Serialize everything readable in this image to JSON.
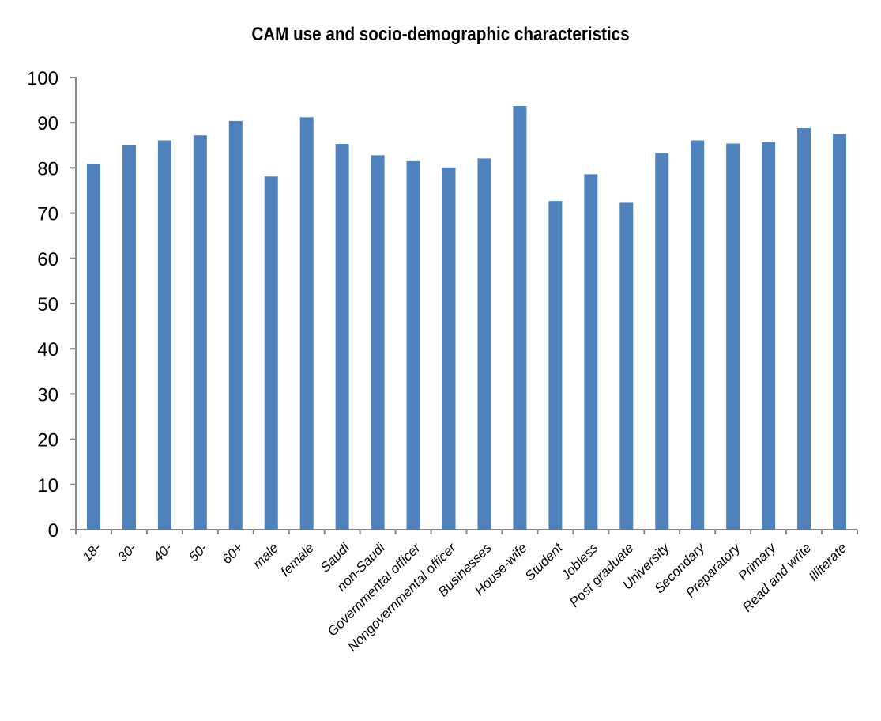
{
  "chart_data": {
    "type": "bar",
    "title": "CAM use and socio-demographic characteristics",
    "xlabel": "",
    "ylabel": "",
    "ylim": [
      0,
      100
    ],
    "yticks": [
      "0",
      "10",
      "20",
      "30",
      "40",
      "50",
      "60",
      "70",
      "80",
      "90",
      "100"
    ],
    "categories": [
      "18-",
      "30-",
      "40-",
      "50-",
      "60+",
      "male",
      "female",
      "Saudi",
      "non-Saudi",
      "Governmental officer",
      "Nongovernmental officer",
      "Businesses",
      "House-wife",
      "Student",
      "Jobless",
      "Post graduate",
      "University",
      "Secondary",
      "Preparatory",
      "Primary",
      "Read and write",
      "Illiterate"
    ],
    "values": [
      80.8,
      85.0,
      86.1,
      87.2,
      90.4,
      78.1,
      91.2,
      85.3,
      82.8,
      81.5,
      80.1,
      82.1,
      93.7,
      72.7,
      78.6,
      72.3,
      83.3,
      86.1,
      85.4,
      85.7,
      88.8,
      87.5
    ],
    "bar_color": "#4f81bd",
    "axis_color": "#868686",
    "grid": false,
    "legend": "none"
  }
}
